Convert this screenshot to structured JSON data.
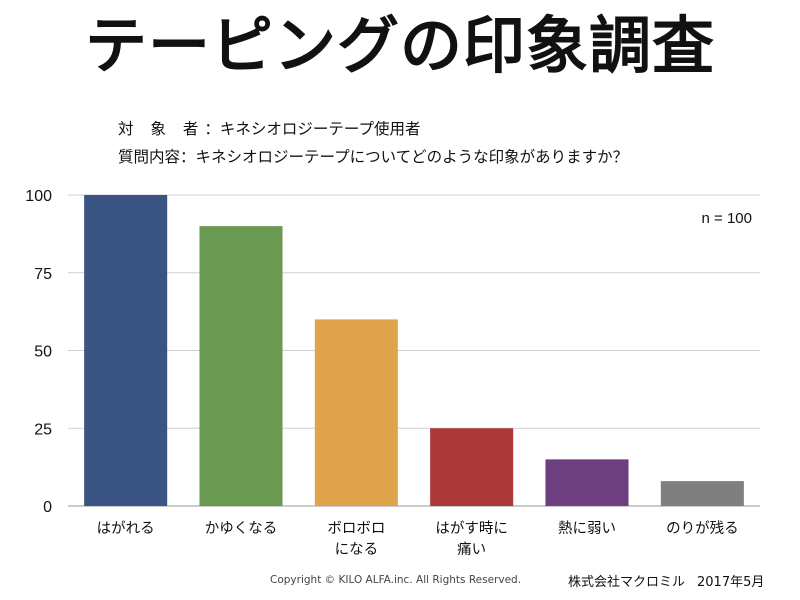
{
  "title": "テーピングの印象調査",
  "subject": {
    "label": "対 象 者",
    "separator": "：",
    "value": "キネシオロジーテープ使用者"
  },
  "question": {
    "label": "質問内容",
    "separator": "：",
    "value": "キネシオロジーテープについてどのような印象がありますか？"
  },
  "sample_note": "n = 100",
  "footer": {
    "copyright": "Copyright © KILO ALFA.inc. All Rights Reserved.",
    "company": "株式会社マクロミル",
    "date": "2017年5月"
  },
  "chart_data": {
    "type": "bar",
    "title": "テーピングの印象調査",
    "xlabel": "",
    "ylabel": "",
    "ylim": [
      0,
      100
    ],
    "yticks": [
      0,
      25,
      50,
      75,
      100
    ],
    "grid": true,
    "categories": [
      [
        "はがれる"
      ],
      [
        "かゆくなる"
      ],
      [
        "ボロボロ",
        "になる"
      ],
      [
        "はがす時に",
        "痛い"
      ],
      [
        "熱に弱い"
      ],
      [
        "のりが残る"
      ]
    ],
    "values": [
      100,
      90,
      60,
      25,
      15,
      8
    ],
    "colors": [
      "#3a5483",
      "#6a9a52",
      "#e0a54c",
      "#ac3937",
      "#6e3f7e",
      "#7f7f7f"
    ]
  }
}
